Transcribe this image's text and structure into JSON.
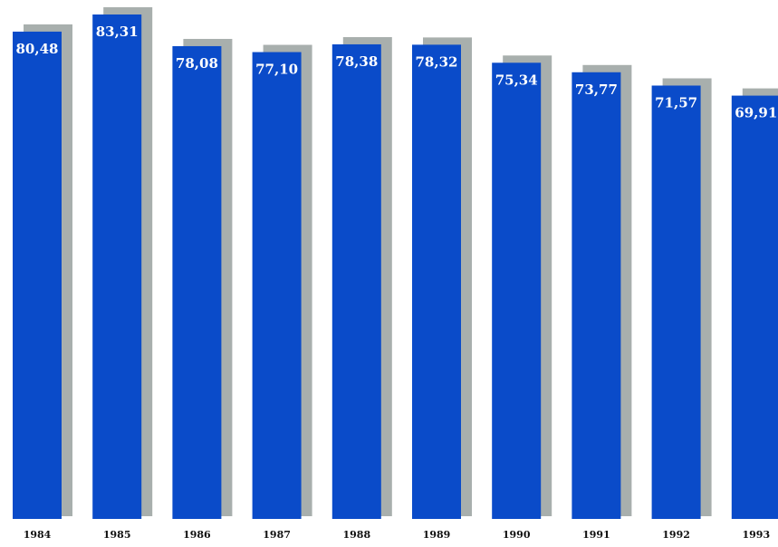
{
  "chart_data": {
    "type": "bar",
    "categories": [
      "1984",
      "1985",
      "1986",
      "1987",
      "1988",
      "1989",
      "1990",
      "1991",
      "1992",
      "1993"
    ],
    "values": [
      80.48,
      83.31,
      78.08,
      77.1,
      78.38,
      78.32,
      75.34,
      73.77,
      71.57,
      69.91
    ],
    "value_labels": [
      "80,48",
      "83,31",
      "78,08",
      "77,10",
      "78,38",
      "78,32",
      "75,34",
      "73,77",
      "71,57",
      "69,91"
    ],
    "title": "",
    "xlabel": "",
    "ylabel": "",
    "ylim": [
      0,
      83.31
    ],
    "grid": false,
    "legend": "none",
    "colors": {
      "bar": "#0a4bc9",
      "shadow": "#a8afad",
      "label": "#ffffff",
      "tick": "#111111"
    }
  }
}
